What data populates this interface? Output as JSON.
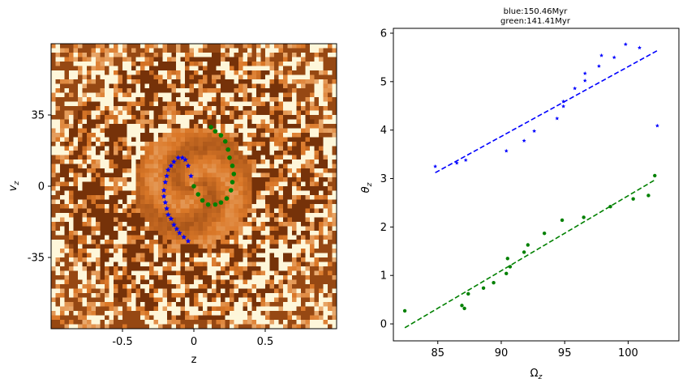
{
  "chart_data": [
    {
      "type": "heatmap",
      "xlabel": "z",
      "ylabel": "v_z",
      "xlim": [
        -1.0,
        1.0
      ],
      "ylim": [
        -70,
        70
      ],
      "xticks": [
        -0.5,
        0.0,
        0.5
      ],
      "xtick_labels": [
        "-0.5",
        "0",
        "0.5"
      ],
      "yticks": [
        35,
        0,
        -35
      ],
      "ytick_labels": [
        "35",
        "0",
        "-35"
      ],
      "colormap": "orange-brown (afmhot reversed)",
      "colors": {
        "low": "#fffbe0",
        "high": "#6b2a06"
      },
      "series": [
        {
          "color": "#0000ff",
          "marker": "star",
          "points": [
            [
              -0.04,
              -27
            ],
            [
              -0.07,
              -25
            ],
            [
              -0.1,
              -23
            ],
            [
              -0.12,
              -21
            ],
            [
              -0.14,
              -19
            ],
            [
              -0.16,
              -16
            ],
            [
              -0.18,
              -14
            ],
            [
              -0.19,
              -11
            ],
            [
              -0.2,
              -8
            ],
            [
              -0.21,
              -5
            ],
            [
              -0.21,
              -2
            ],
            [
              -0.2,
              2
            ],
            [
              -0.19,
              5
            ],
            [
              -0.18,
              8
            ],
            [
              -0.16,
              10
            ],
            [
              -0.14,
              12
            ],
            [
              -0.11,
              14
            ],
            [
              -0.08,
              14
            ],
            [
              -0.06,
              13
            ],
            [
              -0.04,
              10
            ],
            [
              -0.02,
              5
            ]
          ]
        },
        {
          "color": "#008000",
          "marker": "circle",
          "points": [
            [
              0.0,
              0
            ],
            [
              0.03,
              -4
            ],
            [
              0.06,
              -7
            ],
            [
              0.1,
              -9
            ],
            [
              0.15,
              -9
            ],
            [
              0.19,
              -8
            ],
            [
              0.23,
              -6
            ],
            [
              0.26,
              -2
            ],
            [
              0.27,
              2
            ],
            [
              0.28,
              6
            ],
            [
              0.27,
              10
            ],
            [
              0.25,
              14
            ],
            [
              0.24,
              18
            ],
            [
              0.22,
              22
            ],
            [
              0.19,
              25
            ],
            [
              0.15,
              27
            ],
            [
              0.12,
              29
            ]
          ]
        }
      ]
    },
    {
      "type": "scatter",
      "title": "blue:150.46Myr",
      "subtitle": "green:141.41Myr",
      "xlabel": "Ω_z",
      "ylabel": "θ_z",
      "xlim": [
        81.5,
        104.0
      ],
      "ylim": [
        -0.35,
        6.1
      ],
      "xticks": [
        85,
        90,
        95,
        100
      ],
      "yticks": [
        0,
        1,
        2,
        3,
        4,
        5,
        6
      ],
      "series": [
        {
          "color": "#0000ff",
          "marker": "star",
          "points": [
            [
              84.8,
              3.25
            ],
            [
              86.5,
              3.32
            ],
            [
              87.2,
              3.38
            ],
            [
              90.4,
              3.57
            ],
            [
              91.8,
              3.78
            ],
            [
              92.6,
              3.98
            ],
            [
              94.4,
              4.24
            ],
            [
              94.9,
              4.49
            ],
            [
              94.9,
              4.59
            ],
            [
              95.8,
              4.86
            ],
            [
              96.6,
              5.02
            ],
            [
              96.6,
              5.17
            ],
            [
              97.7,
              5.32
            ],
            [
              97.9,
              5.54
            ],
            [
              98.9,
              5.5
            ],
            [
              99.8,
              5.77
            ],
            [
              100.9,
              5.7
            ],
            [
              102.3,
              4.09
            ]
          ],
          "fit_line": {
            "x": [
              84.8,
              102.3
            ],
            "y": [
              3.12,
              5.64
            ]
          }
        },
        {
          "color": "#008000",
          "marker": "circle",
          "points": [
            [
              82.4,
              0.27
            ],
            [
              86.9,
              0.38
            ],
            [
              87.1,
              0.32
            ],
            [
              87.4,
              0.62
            ],
            [
              88.6,
              0.74
            ],
            [
              89.4,
              0.85
            ],
            [
              90.4,
              1.04
            ],
            [
              90.5,
              1.35
            ],
            [
              90.7,
              1.18
            ],
            [
              91.8,
              1.48
            ],
            [
              92.1,
              1.63
            ],
            [
              93.4,
              1.87
            ],
            [
              94.8,
              2.14
            ],
            [
              96.5,
              2.2
            ],
            [
              98.6,
              2.42
            ],
            [
              100.4,
              2.58
            ],
            [
              101.6,
              2.65
            ],
            [
              102.1,
              3.06
            ]
          ],
          "fit_line": {
            "x": [
              82.4,
              102.1
            ],
            "y": [
              -0.08,
              2.97
            ]
          }
        }
      ]
    }
  ]
}
